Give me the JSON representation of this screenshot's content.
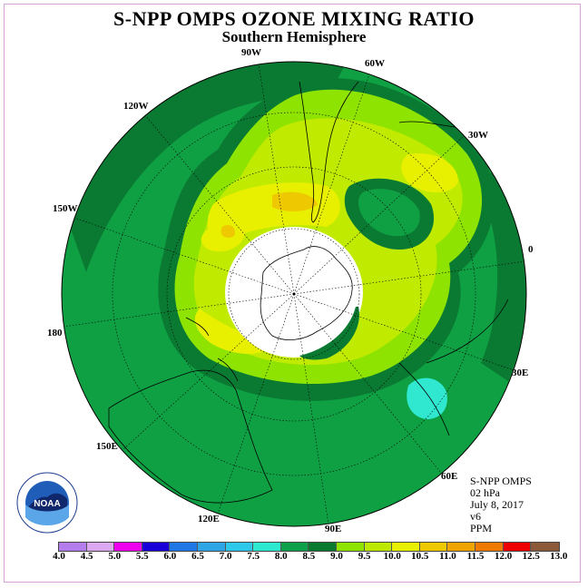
{
  "title": "S-NPP OMPS OZONE MIXING RATIO",
  "subtitle": "Southern Hemisphere",
  "info": {
    "instrument": "S-NPP OMPS",
    "level": "02 hPa",
    "date": "July 8, 2017",
    "version": "v6",
    "units": "PPM"
  },
  "longitude_labels": [
    "90W",
    "60W",
    "30W",
    "0",
    "30E",
    "60E",
    "90E",
    "120E",
    "150E",
    "180",
    "150W",
    "120W"
  ],
  "logo_text": "NOAA",
  "colorbar": {
    "ticks": [
      "4.0",
      "4.5",
      "5.0",
      "5.5",
      "6.0",
      "6.5",
      "7.0",
      "7.5",
      "8.0",
      "8.5",
      "9.0",
      "9.5",
      "10.0",
      "10.5",
      "11.0",
      "11.5",
      "12.0",
      "12.5",
      "13.0"
    ],
    "colors": [
      "#b47ded",
      "#dca9f0",
      "#ee00ee",
      "#1a00d8",
      "#1f78e6",
      "#2ea5e6",
      "#2ec8ea",
      "#2ee8d0",
      "#0ea04a",
      "#097a30",
      "#8ee400",
      "#bde800",
      "#e6f000",
      "#eec800",
      "#f0a400",
      "#f07a00",
      "#ee0000",
      "#8a5a3a"
    ]
  },
  "colors": {
    "level_8_0": "#10a044",
    "level_8_5": "#0a7a32",
    "level_9_0": "#8ee400",
    "level_9_5": "#c0ea00",
    "level_10_0": "#e8f000",
    "level_10_5": "#eec800",
    "level_7_5": "#30e8d0",
    "polar_night": "#ffffff",
    "frame": "#d7a4d7"
  }
}
